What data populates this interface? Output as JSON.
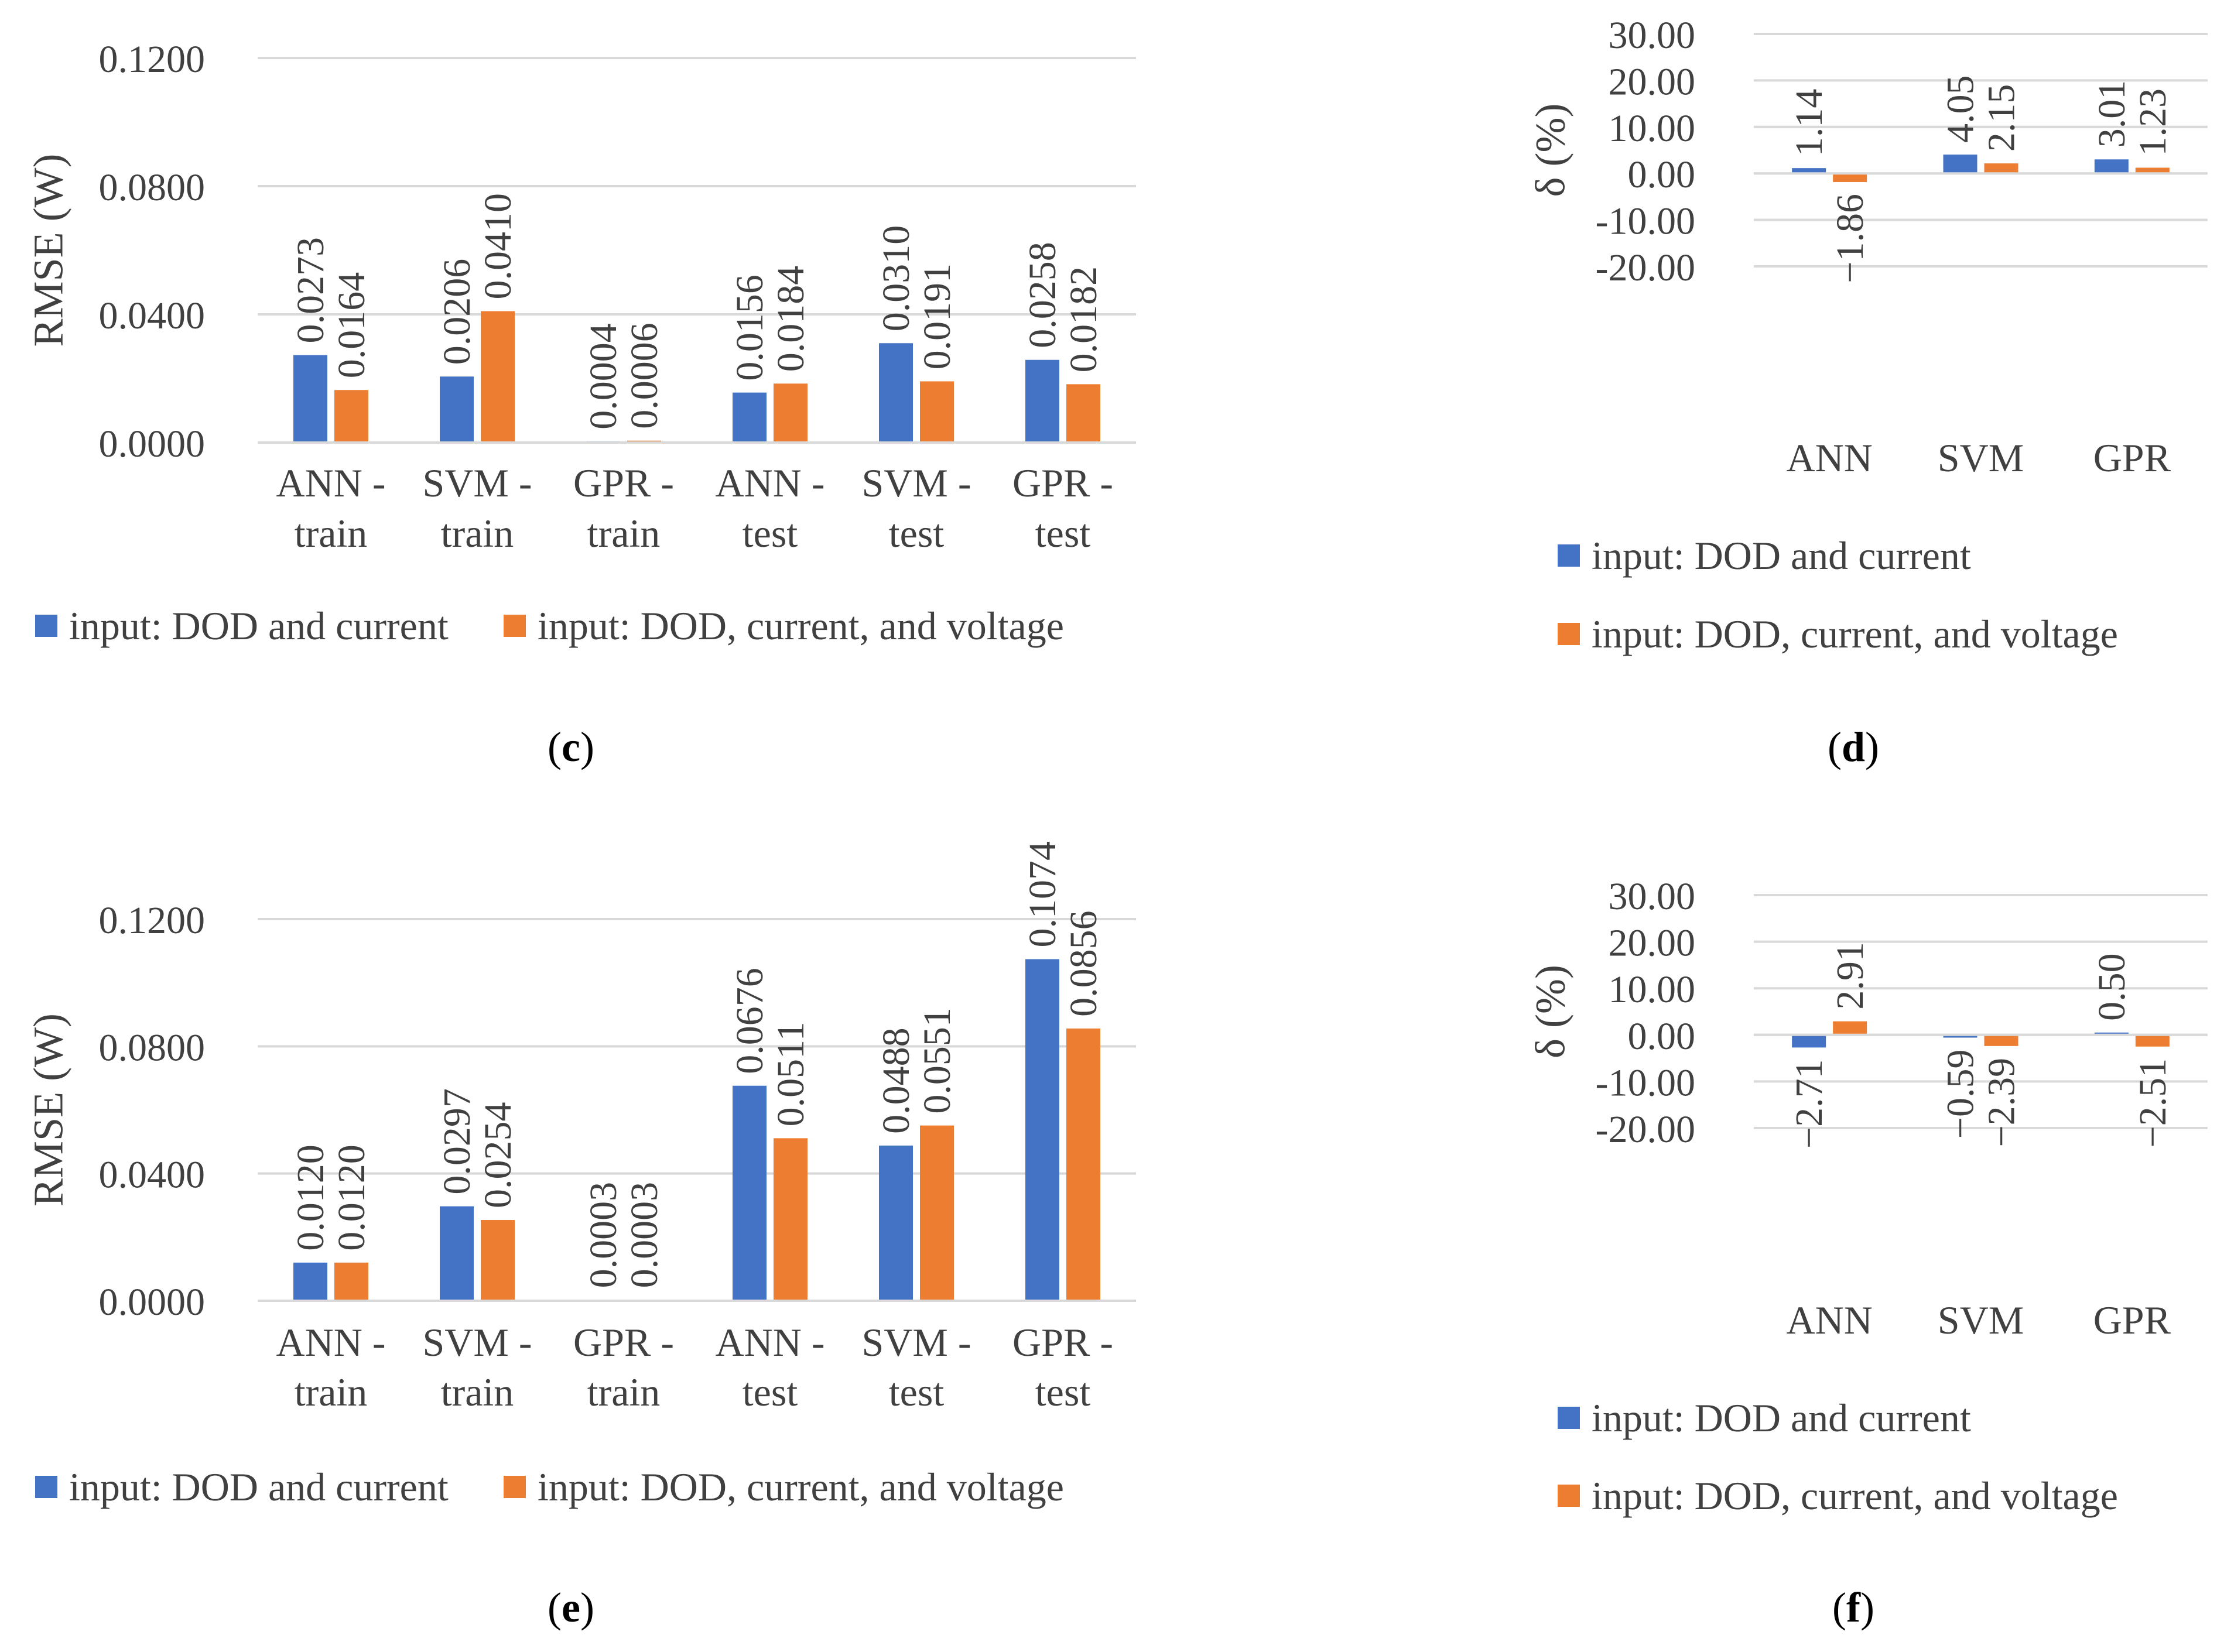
{
  "colors": {
    "series1": "#4472C4",
    "series2": "#ED7D31",
    "grid": "#D9D9D9",
    "text": "#404040"
  },
  "chart_data": [
    {
      "id": "c",
      "type": "bar",
      "caption_letter": "c",
      "ylabel": "RMSE (W)",
      "y_ticks": [
        "0.0000",
        "0.0400",
        "0.0800",
        "0.1200"
      ],
      "ylim": [
        0,
        0.12
      ],
      "categories": [
        [
          "ANN -",
          "train"
        ],
        [
          "SVM -",
          "train"
        ],
        [
          "GPR -",
          "train"
        ],
        [
          "ANN -",
          "test"
        ],
        [
          "SVM -",
          "test"
        ],
        [
          "GPR -",
          "test"
        ]
      ],
      "series": [
        {
          "name": "input: DOD and current",
          "values": [
            0.0273,
            0.0206,
            0.0004,
            0.0156,
            0.031,
            0.0258
          ],
          "labels": [
            "0.0273",
            "0.0206",
            "0.0004",
            "0.0156",
            "0.0310",
            "0.0258"
          ]
        },
        {
          "name": "input: DOD, current, and voltage",
          "values": [
            0.0164,
            0.041,
            0.0006,
            0.0184,
            0.0191,
            0.0182
          ],
          "labels": [
            "0.0164",
            "0.0410",
            "0.0006",
            "0.0184",
            "0.0191",
            "0.0182"
          ]
        }
      ],
      "legend_position": "bottom"
    },
    {
      "id": "d",
      "type": "bar",
      "caption_letter": "d",
      "ylabel": "δ (%)",
      "y_ticks": [
        "-20.00",
        "-10.00",
        "0.00",
        "10.00",
        "20.00",
        "30.00"
      ],
      "ylim": [
        -20,
        30
      ],
      "categories": [
        [
          "ANN"
        ],
        [
          "SVM"
        ],
        [
          "GPR"
        ]
      ],
      "series": [
        {
          "name": "input: DOD and current",
          "values": [
            1.14,
            4.05,
            3.01
          ],
          "labels": [
            "1.14",
            "4.05",
            "3.01"
          ]
        },
        {
          "name": "input: DOD, current, and voltage",
          "values": [
            -1.86,
            2.15,
            1.23
          ],
          "labels": [
            "−1.86",
            "2.15",
            "1.23"
          ]
        }
      ],
      "legend_position": "bottom"
    },
    {
      "id": "e",
      "type": "bar",
      "caption_letter": "e",
      "ylabel": "RMSE (W)",
      "y_ticks": [
        "0.0000",
        "0.0400",
        "0.0800",
        "0.1200"
      ],
      "ylim": [
        0,
        0.12
      ],
      "categories": [
        [
          "ANN -",
          "train"
        ],
        [
          "SVM -",
          "train"
        ],
        [
          "GPR -",
          "train"
        ],
        [
          "ANN -",
          "test"
        ],
        [
          "SVM -",
          "test"
        ],
        [
          "GPR -",
          "test"
        ]
      ],
      "series": [
        {
          "name": "input: DOD and current",
          "values": [
            0.012,
            0.0297,
            0.0003,
            0.0676,
            0.0488,
            0.1074
          ],
          "labels": [
            "0.0120",
            "0.0297",
            "0.0003",
            "0.0676",
            "0.0488",
            "0.1074"
          ]
        },
        {
          "name": "input: DOD, current, and voltage",
          "values": [
            0.012,
            0.0254,
            0.0003,
            0.0511,
            0.0551,
            0.0856
          ],
          "labels": [
            "0.0120",
            "0.0254",
            "0.0003",
            "0.0511",
            "0.0551",
            "0.0856"
          ]
        }
      ],
      "legend_position": "bottom"
    },
    {
      "id": "f",
      "type": "bar",
      "caption_letter": "f",
      "ylabel": "δ (%)",
      "y_ticks": [
        "-20.00",
        "-10.00",
        "0.00",
        "10.00",
        "20.00",
        "30.00"
      ],
      "ylim": [
        -20,
        30
      ],
      "categories": [
        [
          "ANN"
        ],
        [
          "SVM"
        ],
        [
          "GPR"
        ]
      ],
      "series": [
        {
          "name": "input: DOD and current",
          "values": [
            -2.71,
            -0.59,
            0.5
          ],
          "labels": [
            "−2.71",
            "−0.59",
            "0.50"
          ]
        },
        {
          "name": "input: DOD, current, and voltage",
          "values": [
            2.91,
            -2.39,
            -2.51
          ],
          "labels": [
            "2.91",
            "−2.39",
            "−2.51"
          ]
        }
      ],
      "legend_position": "bottom"
    }
  ]
}
